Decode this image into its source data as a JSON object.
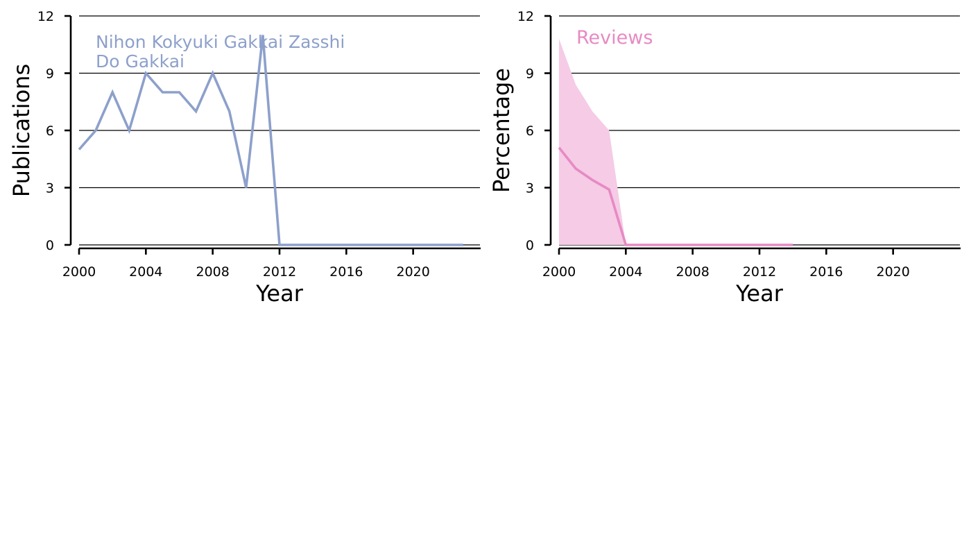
{
  "chart_data": [
    {
      "type": "line",
      "xlabel": "Year",
      "ylabel": "Publications",
      "xlim": [
        2000,
        2024
      ],
      "ylim": [
        0,
        12
      ],
      "x_ticks": [
        2000,
        2004,
        2008,
        2012,
        2016,
        2020
      ],
      "y_ticks": [
        0,
        3,
        6,
        9,
        12
      ],
      "grid": "horizontal",
      "annotation_lines": [
        "Nihon Kokyuki Gakkai Zasshi",
        "Do Gakkai"
      ],
      "series": [
        {
          "color": "#8da0cb",
          "x": [
            2000,
            2001,
            2002,
            2003,
            2004,
            2005,
            2006,
            2007,
            2008,
            2009,
            2010,
            2011,
            2012,
            2013,
            2014,
            2015,
            2016,
            2017,
            2018,
            2019,
            2020,
            2021,
            2022,
            2023
          ],
          "y": [
            5,
            6,
            8,
            6,
            9,
            8,
            8,
            7,
            9,
            7,
            3,
            11,
            0,
            0,
            0,
            0,
            0,
            0,
            0,
            0,
            0,
            0,
            0,
            0
          ]
        }
      ]
    },
    {
      "type": "area",
      "xlabel": "Year",
      "ylabel": "Percentage",
      "xlim": [
        2000,
        2024
      ],
      "ylim": [
        0,
        12
      ],
      "x_ticks": [
        2000,
        2004,
        2008,
        2012,
        2016,
        2020
      ],
      "y_ticks": [
        0,
        3,
        6,
        9,
        12
      ],
      "grid": "horizontal",
      "annotation_lines": [
        "Reviews"
      ],
      "series": [
        {
          "color": "#e78ac3",
          "band_color": "#f5cbe6",
          "x": [
            2000,
            2001,
            2002,
            2003,
            2004,
            2005,
            2006,
            2007,
            2008,
            2009,
            2010,
            2011,
            2012,
            2013,
            2014
          ],
          "y": [
            5.1,
            4.0,
            3.4,
            2.9,
            0,
            0,
            0,
            0,
            0,
            0,
            0,
            0,
            0,
            0,
            0
          ],
          "upper": [
            10.8,
            8.4,
            7.0,
            6.0,
            0,
            0,
            0,
            0,
            0,
            0,
            0,
            0,
            0,
            0,
            0
          ],
          "lower": [
            0,
            0,
            0,
            0,
            0,
            0,
            0,
            0,
            0,
            0,
            0,
            0,
            0,
            0,
            0
          ]
        }
      ]
    }
  ]
}
